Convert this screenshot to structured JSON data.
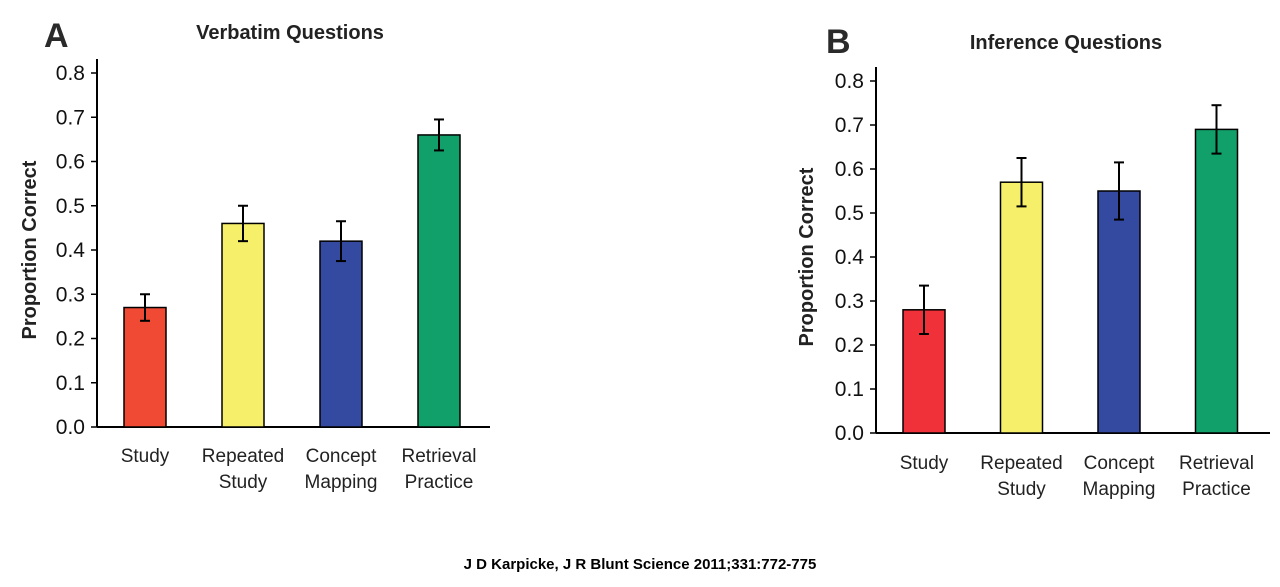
{
  "citation": "J D Karpicke, J R Blunt Science 2011;331:772-775",
  "chart_data": [
    {
      "panel": "A",
      "type": "bar",
      "title": "Verbatim Questions",
      "ylabel": "Proportion Correct",
      "xlabel": "",
      "ylim": [
        0,
        0.8
      ],
      "yticks": [
        "0.0",
        "0.1",
        "0.2",
        "0.3",
        "0.4",
        "0.5",
        "0.6",
        "0.7",
        "0.8"
      ],
      "categories": [
        [
          "Study"
        ],
        [
          "Repeated",
          "Study"
        ],
        [
          "Concept",
          "Mapping"
        ],
        [
          "Retrieval",
          "Practice"
        ]
      ],
      "values": [
        0.27,
        0.46,
        0.42,
        0.66
      ],
      "errors": [
        0.03,
        0.04,
        0.045,
        0.035
      ],
      "colors": [
        "#f04a35",
        "#f6ef6a",
        "#3449a0",
        "#12a06a"
      ],
      "grid": false
    },
    {
      "panel": "B",
      "type": "bar",
      "title": "Inference Questions",
      "ylabel": "Proportion Correct",
      "xlabel": "",
      "ylim": [
        0,
        0.8
      ],
      "yticks": [
        "0.0",
        "0.1",
        "0.2",
        "0.3",
        "0.4",
        "0.5",
        "0.6",
        "0.7",
        "0.8"
      ],
      "categories": [
        [
          "Study"
        ],
        [
          "Repeated",
          "Study"
        ],
        [
          "Concept",
          "Mapping"
        ],
        [
          "Retrieval",
          "Practice"
        ]
      ],
      "values": [
        0.28,
        0.57,
        0.55,
        0.69
      ],
      "errors": [
        0.055,
        0.055,
        0.065,
        0.055
      ],
      "colors": [
        "#f0313a",
        "#f6ef6a",
        "#3449a0",
        "#12a06a"
      ],
      "grid": false
    }
  ]
}
